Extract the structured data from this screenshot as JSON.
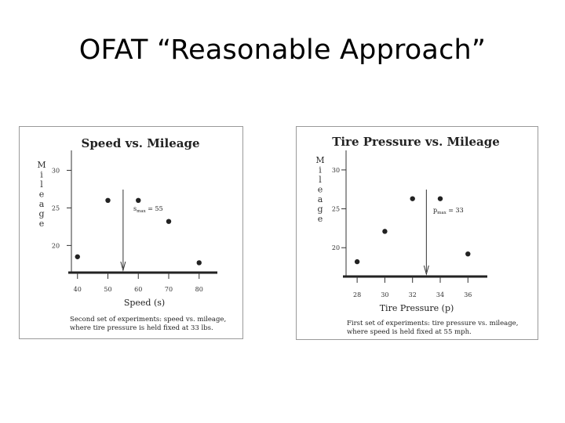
{
  "slide": {
    "title": "OFAT “Reasonable Approach”"
  },
  "chart_data": [
    {
      "type": "scatter",
      "title": "Speed vs. Mileage",
      "ylabel_letters": [
        "M",
        "i",
        "l",
        "e",
        "a",
        "g",
        "e"
      ],
      "xlabel": "Speed (s)",
      "x_ticks": [
        40,
        50,
        60,
        70,
        80
      ],
      "y_ticks": [
        20,
        25,
        30
      ],
      "xlim": [
        38,
        86
      ],
      "ylim": [
        16.6,
        31.4
      ],
      "points": [
        {
          "x": 40,
          "y": 18.5
        },
        {
          "x": 50,
          "y": 26
        },
        {
          "x": 60,
          "y": 26
        },
        {
          "x": 70,
          "y": 23.2
        },
        {
          "x": 80,
          "y": 17.7
        }
      ],
      "annotation": {
        "label": "s",
        "subscript": "max",
        "text": "= 55",
        "x": 55
      },
      "caption": [
        "Second set of experiments: speed vs. mileage,",
        "where tire pressure is held fixed at 33 lbs."
      ]
    },
    {
      "type": "scatter",
      "title": "Tire Pressure vs. Mileage",
      "ylabel_letters": [
        "M",
        "i",
        "l",
        "e",
        "a",
        "g",
        "e"
      ],
      "xlabel": "Tire Pressure (p)",
      "x_ticks": [
        28,
        30,
        32,
        34,
        36
      ],
      "y_ticks": [
        20,
        25,
        30
      ],
      "xlim": [
        27.2,
        37.4
      ],
      "ylim": [
        16.6,
        31.3
      ],
      "points": [
        {
          "x": 28,
          "y": 18.2
        },
        {
          "x": 30,
          "y": 22.1
        },
        {
          "x": 32,
          "y": 26.3
        },
        {
          "x": 34,
          "y": 26.3
        },
        {
          "x": 36,
          "y": 19.2
        }
      ],
      "annotation": {
        "label": "p",
        "subscript": "max",
        "text": "= 33",
        "x": 33
      },
      "caption": [
        "First set of experiments: tire pressure vs. mileage,",
        "where speed is held fixed at 55 mph."
      ]
    }
  ]
}
